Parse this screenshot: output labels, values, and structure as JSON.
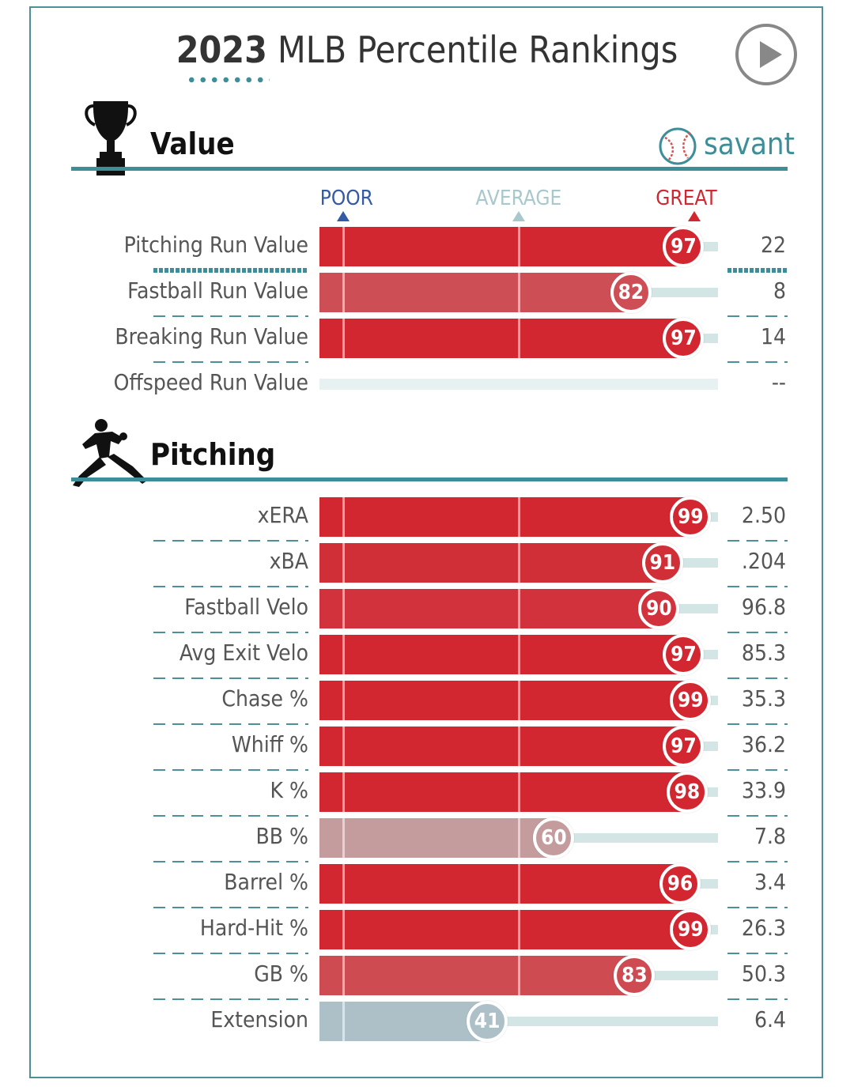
{
  "title": {
    "year": "2023",
    "rest": "MLB Percentile Rankings"
  },
  "sections": {
    "value": {
      "title": "Value"
    },
    "pitching": {
      "title": "Pitching"
    }
  },
  "logo_text": "savant",
  "scale": {
    "poor": "POOR",
    "average": "AVERAGE",
    "great": "GREAT"
  },
  "colors": {
    "great": "#d22630",
    "poor": "#325aa5",
    "average": "#a8c8cc",
    "accent": "#3d8e98"
  },
  "icons": [
    "play-icon",
    "trophy-icon",
    "savant-baseball-icon",
    "pitcher-icon"
  ],
  "chart_data": {
    "type": "bar",
    "title": "2023 MLB Percentile Rankings",
    "xlim": [
      0,
      100
    ],
    "value_rows": [
      {
        "label": "Pitching Run Value",
        "percentile": 97,
        "value": "22"
      },
      {
        "label": "Fastball Run Value",
        "percentile": 82,
        "value": "8"
      },
      {
        "label": "Breaking Run Value",
        "percentile": 97,
        "value": "14"
      },
      {
        "label": "Offspeed Run Value",
        "percentile": null,
        "value": "--"
      }
    ],
    "pitching_rows": [
      {
        "label": "xERA",
        "percentile": 99,
        "value": "2.50"
      },
      {
        "label": "xBA",
        "percentile": 91,
        "value": ".204"
      },
      {
        "label": "Fastball Velo",
        "percentile": 90,
        "value": "96.8"
      },
      {
        "label": "Avg Exit Velo",
        "percentile": 97,
        "value": "85.3"
      },
      {
        "label": "Chase %",
        "percentile": 99,
        "value": "35.3"
      },
      {
        "label": "Whiff %",
        "percentile": 97,
        "value": "36.2"
      },
      {
        "label": "K %",
        "percentile": 98,
        "value": "33.9"
      },
      {
        "label": "BB %",
        "percentile": 60,
        "value": "7.8"
      },
      {
        "label": "Barrel %",
        "percentile": 96,
        "value": "3.4"
      },
      {
        "label": "Hard-Hit %",
        "percentile": 99,
        "value": "26.3"
      },
      {
        "label": "GB %",
        "percentile": 83,
        "value": "50.3"
      },
      {
        "label": "Extension",
        "percentile": 41,
        "value": "6.4"
      }
    ]
  }
}
